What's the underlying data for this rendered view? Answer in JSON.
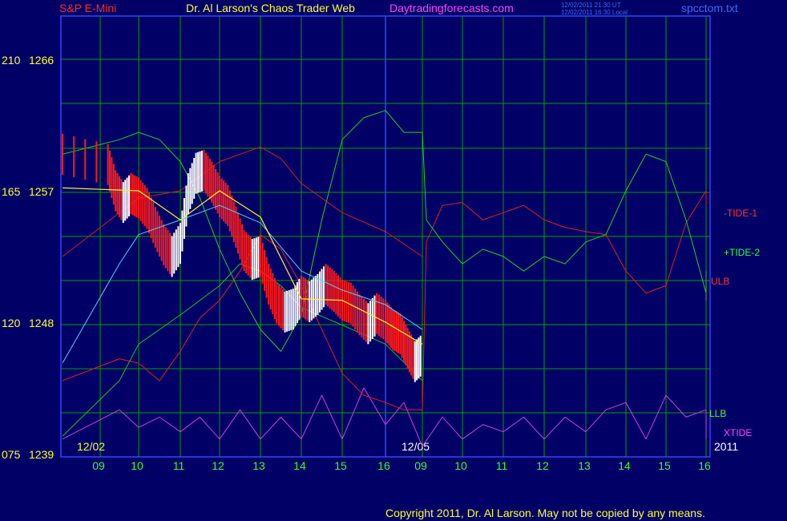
{
  "header": {
    "instrument": "S&P E-Mini",
    "site_title": "Dr. Al Larson's Chaos Trader Web",
    "site_url": "Daytradingforecasts.com",
    "timestamp_ut": "12/02/2011 21:30 UT",
    "timestamp_local": "12/02/2011 16:30 Local",
    "file_name": "spcctom.txt"
  },
  "footer": {
    "copyright": "Copyright 2011, Dr. Al Larson. May not be copied by any means."
  },
  "colors": {
    "background": "#000066",
    "grid": "#00a000",
    "price_up": "#ffffff",
    "price_down": "#ff1a1a",
    "tide1": "#e02020",
    "tide2": "#20d020",
    "ulb": "#d02020",
    "llb": "#20c020",
    "xtide": "#d040e0",
    "ma_fast": "#ffee33",
    "ma_slow": "#55d0ff",
    "labels_yellow": "#ffff33",
    "labels_green": "#33ff33"
  },
  "chart_data": {
    "type": "line",
    "title": "S&P E-Mini",
    "y_axis": {
      "ticks": [
        {
          "left": "075",
          "right": "1239",
          "price": 1239
        },
        {
          "left": "120",
          "right": "1248",
          "price": 1248
        },
        {
          "left": "165",
          "right": "1257",
          "price": 1257
        },
        {
          "left": "210",
          "right": "1266",
          "price": 1266
        }
      ],
      "range": [
        1239,
        1266
      ]
    },
    "x_axis": {
      "hour_ticks": [
        "09",
        "10",
        "11",
        "12",
        "13",
        "14",
        "15",
        "16",
        "09",
        "10",
        "11",
        "12",
        "13",
        "14",
        "15",
        "16"
      ],
      "date_labels": [
        "12/02",
        "12/05"
      ],
      "year_label": "2011",
      "range_hours": [
        0,
        16
      ]
    },
    "series_labels": [
      {
        "name": "-TIDE-1",
        "color": "#ff3333"
      },
      {
        "name": "+TIDE-2",
        "color": "#33ff33"
      },
      {
        "name": "ULB",
        "color": "#ff3333"
      },
      {
        "name": "LLB",
        "color": "#33ff33"
      },
      {
        "name": "XTIDE",
        "color": "#ff44ff"
      }
    ],
    "series": [
      {
        "name": "Price close",
        "x": [
          0,
          0.2,
          0.4,
          0.6,
          0.8,
          1.0,
          1.2,
          1.4,
          1.6,
          1.8,
          2.0,
          2.2,
          2.4,
          2.6,
          2.8,
          3.0,
          3.2,
          3.4,
          3.6,
          3.8,
          4.0,
          4.2,
          4.4,
          4.6,
          4.8,
          5.0,
          5.2,
          5.4,
          5.6,
          5.8,
          6.0,
          6.2,
          6.4,
          6.6,
          6.8,
          7.0,
          7.2,
          7.4,
          7.6,
          7.8,
          8.0
        ],
        "values": [
          1259.5,
          1258.8,
          1257.0,
          1256.2,
          1256.8,
          1256.5,
          1255.8,
          1254.5,
          1253.3,
          1252.5,
          1253.4,
          1256.8,
          1258.2,
          1258.4,
          1257.6,
          1256.6,
          1256.0,
          1254.5,
          1252.9,
          1252.3,
          1252.5,
          1250.6,
          1249.3,
          1248.7,
          1248.9,
          1249.8,
          1249.4,
          1249.9,
          1250.6,
          1250.1,
          1249.5,
          1249.3,
          1248.5,
          1247.9,
          1248.6,
          1248.1,
          1247.5,
          1247.2,
          1246.2,
          1245.3,
          1245.8
        ]
      },
      {
        "name": "Moving average fast",
        "x": [
          0,
          1,
          2,
          3,
          4,
          5,
          6,
          7,
          8
        ],
        "values": [
          1257.2,
          1257.0,
          1255.0,
          1257.0,
          1255.2,
          1249.6,
          1249.5,
          1248.0,
          1246.5
        ]
      },
      {
        "name": "Moving average slow",
        "x": [
          0,
          0.5,
          1,
          2,
          3,
          4,
          5,
          6,
          7,
          8
        ],
        "values": [
          1245.2,
          1252.0,
          1254.0,
          1255.0,
          1256.0,
          1254.8,
          1251.5,
          1250.2,
          1249.2,
          1247.5
        ]
      },
      {
        "name": "ULB",
        "x": [
          0,
          1,
          2,
          3,
          4,
          4.5,
          5,
          6,
          7,
          8
        ],
        "values": [
          1252.5,
          1256.5,
          1257.0,
          1259.0,
          1260.0,
          1259.2,
          1257.5,
          1255.5,
          1254.2,
          1252.5
        ]
      },
      {
        "name": "LLB",
        "x": [
          0,
          0.5,
          1,
          2,
          3,
          3.5,
          4,
          4.5,
          5,
          6,
          7,
          8
        ],
        "values": [
          1240.2,
          1244.0,
          1246.5,
          1248.5,
          1250.5,
          1252.0,
          1251.5,
          1250.5,
          1249.0,
          1247.8,
          1246.5,
          1244.0
        ]
      },
      {
        "name": "-TIDE-1",
        "x": [
          0,
          0.5,
          1,
          1.5,
          2,
          2.5,
          3,
          3.5,
          4,
          4.5,
          5,
          5.5,
          6,
          6.5,
          7,
          7.5,
          8,
          8.1,
          8.5,
          9,
          9.5,
          10,
          10.5,
          11,
          11.5,
          12,
          12.5,
          13,
          13.5,
          14,
          14.5,
          15,
          15.5,
          16
        ],
        "values": [
          1244.0,
          1245.5,
          1245.2,
          1244.0,
          1246.0,
          1248.3,
          1249.5,
          1251.5,
          1254.0,
          1253.0,
          1250.5,
          1247.5,
          1244.5,
          1243.0,
          1242.5,
          1242.0,
          1242.0,
          1253.5,
          1256.0,
          1256.2,
          1255.0,
          1255.5,
          1256.0,
          1255.0,
          1254.5,
          1254.2,
          1254.0,
          1251.5,
          1250.0,
          1250.5,
          1254.8,
          1257.0,
          1257.0,
          1256.0
        ]
      },
      {
        "name": "+TIDE-2",
        "x": [
          0,
          0.5,
          1,
          1.5,
          2,
          2.5,
          3,
          3.5,
          4,
          4.5,
          5,
          5.5,
          6,
          6.5,
          7,
          7.5,
          8,
          8.1,
          8.5,
          9,
          9.5,
          10,
          10.5,
          11,
          11.5,
          12,
          12.5,
          13,
          13.5,
          14,
          14.5,
          15,
          15.5,
          16
        ],
        "values": [
          1259.5,
          1260.5,
          1261.0,
          1260.5,
          1259.0,
          1256.5,
          1253.0,
          1250.0,
          1247.5,
          1246.0,
          1248.5,
          1255.0,
          1260.5,
          1262.0,
          1262.5,
          1261.0,
          1261.0,
          1255.0,
          1253.5,
          1252.0,
          1253.0,
          1252.5,
          1251.5,
          1252.5,
          1252.0,
          1253.5,
          1254.0,
          1257.0,
          1259.5,
          1259.0,
          1255.0,
          1250.0,
          1249.5,
          1251.5
        ]
      },
      {
        "name": "XTIDE",
        "x": [
          0,
          0.5,
          1,
          1.5,
          2,
          2.5,
          3,
          3.5,
          4,
          4.5,
          5,
          5.5,
          6,
          6.5,
          7,
          7.5,
          8,
          8.5,
          9,
          9.5,
          10,
          10.5,
          11,
          11.5,
          12,
          12.5,
          13,
          13.5,
          14,
          14.5,
          15,
          15.5,
          16
        ],
        "values": [
          1240.0,
          1242.0,
          1240.8,
          1241.5,
          1240.5,
          1241.5,
          1240.0,
          1242.0,
          1240.0,
          1241.5,
          1240.0,
          1243.0,
          1240.0,
          1243.5,
          1241.0,
          1242.5,
          1239.5,
          1241.5,
          1240.0,
          1241.0,
          1240.5,
          1241.5,
          1240.0,
          1241.5,
          1240.5,
          1242.0,
          1242.5,
          1240.0,
          1243.0,
          1241.5,
          1242.0,
          1240.0,
          1240.5
        ]
      }
    ]
  }
}
